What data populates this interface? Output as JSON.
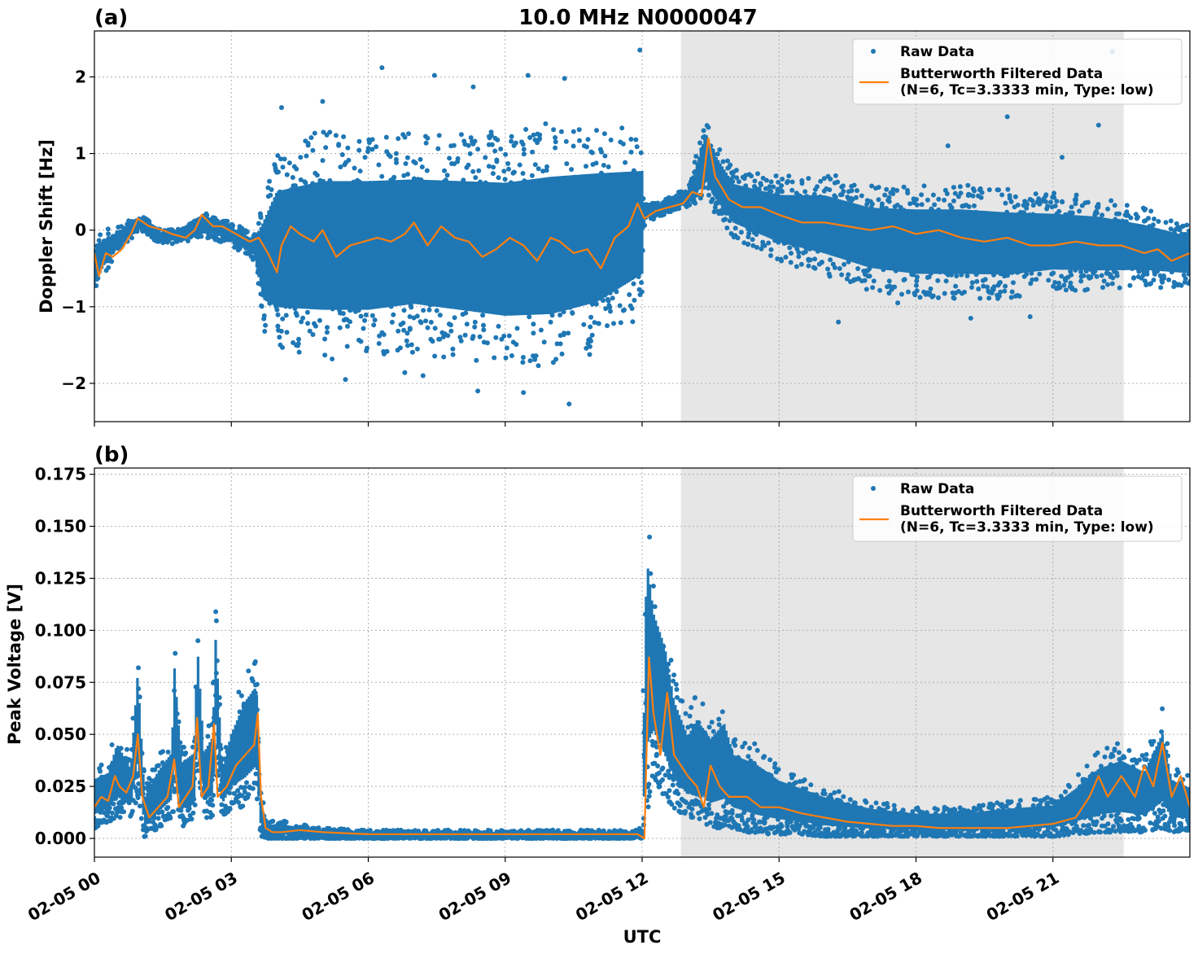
{
  "figure": {
    "title": "10.0 MHz N0000047",
    "xlabel": "UTC"
  },
  "colors": {
    "raw": "#1f77b4",
    "filtered": "#ff7f0e",
    "shade": "#e6e6e6",
    "grid": "#b0b0b0"
  },
  "chart_data": [
    {
      "type": "scatter",
      "panel_label": "(a)",
      "ylabel": "Doppler Shift [Hz]",
      "x_unit": "hours UTC since 02-05 00:00",
      "xlim": [
        0,
        24
      ],
      "ylim": [
        -2.5,
        2.6
      ],
      "yticks": [
        -2,
        -1,
        0,
        1,
        2
      ],
      "ytick_labels": [
        "−2",
        "−1",
        "0",
        "1",
        "2"
      ],
      "xticks": [
        0,
        3,
        6,
        9,
        12,
        15,
        18,
        21
      ],
      "xtick_labels": [
        "02-05 00",
        "02-05 03",
        "02-05 06",
        "02-05 09",
        "02-05 12",
        "02-05 15",
        "02-05 18",
        "02-05 21"
      ],
      "grid": true,
      "shaded_x": [
        12.85,
        22.55
      ],
      "legend": {
        "placement": "top-right",
        "entries": [
          {
            "label": "Raw Data",
            "marker": "dot"
          },
          {
            "label": "Butterworth Filtered Data",
            "sublabel": "(N=6, Tc=3.3333 min, Type: low)",
            "marker": "line"
          }
        ]
      },
      "series": [
        {
          "name": "Raw Data",
          "kind": "scatter-band",
          "x": [
            0,
            0.2,
            0.5,
            1,
            1.5,
            2,
            2.5,
            3,
            3.5,
            3.7,
            4,
            5,
            6,
            7,
            8,
            9,
            10,
            11,
            12,
            12.05,
            12.3,
            13,
            13.4,
            13.6,
            14,
            15,
            16,
            17,
            18,
            19,
            20,
            21,
            22,
            23,
            24
          ],
          "ymin": [
            -0.9,
            -0.6,
            -0.3,
            0.0,
            -0.2,
            -0.15,
            -0.1,
            -0.2,
            -0.4,
            -1.3,
            -1.6,
            -1.7,
            -1.7,
            -1.6,
            -1.7,
            -1.8,
            -1.8,
            -1.6,
            -1.1,
            0.1,
            0.15,
            0.3,
            0.4,
            0.2,
            -0.1,
            -0.4,
            -0.6,
            -0.8,
            -0.9,
            -0.9,
            -0.9,
            -0.8,
            -0.8,
            -0.75,
            -0.75
          ],
          "ymax": [
            -0.1,
            0.0,
            0.05,
            0.2,
            0.0,
            0.05,
            0.25,
            0.1,
            -0.05,
            0.5,
            1.1,
            1.3,
            1.3,
            1.3,
            1.3,
            1.3,
            1.4,
            1.4,
            1.3,
            0.35,
            0.35,
            0.55,
            1.5,
            1.2,
            0.8,
            0.7,
            0.75,
            0.6,
            0.6,
            0.6,
            0.55,
            0.5,
            0.45,
            0.3,
            0.1
          ],
          "outliers": [
            [
              4.1,
              1.6
            ],
            [
              5.0,
              1.68
            ],
            [
              6.3,
              2.12
            ],
            [
              7.45,
              2.02
            ],
            [
              8.3,
              1.87
            ],
            [
              9.5,
              2.02
            ],
            [
              10.3,
              1.98
            ],
            [
              11.95,
              2.35
            ],
            [
              6.8,
              -1.86
            ],
            [
              8.4,
              -2.1
            ],
            [
              9.4,
              -2.12
            ],
            [
              10.4,
              -2.27
            ],
            [
              5.5,
              -1.95
            ],
            [
              7.2,
              -1.9
            ],
            [
              16.3,
              -1.2
            ],
            [
              17.6,
              -0.95
            ],
            [
              19.2,
              -1.15
            ],
            [
              20.5,
              -1.13
            ],
            [
              18.7,
              1.1
            ],
            [
              20.0,
              1.48
            ],
            [
              22.0,
              1.37
            ],
            [
              22.3,
              2.33
            ],
            [
              21.2,
              0.95
            ]
          ]
        },
        {
          "name": "Butterworth Filtered Data",
          "kind": "line",
          "x": [
            0,
            0.1,
            0.25,
            0.4,
            0.6,
            0.8,
            0.95,
            1.2,
            1.5,
            1.7,
            2.0,
            2.2,
            2.35,
            2.6,
            2.8,
            3.1,
            3.4,
            3.6,
            3.8,
            4.0,
            4.1,
            4.3,
            4.5,
            4.8,
            5.0,
            5.3,
            5.6,
            5.9,
            6.2,
            6.5,
            6.8,
            7.0,
            7.3,
            7.6,
            7.9,
            8.2,
            8.5,
            8.8,
            9.1,
            9.4,
            9.7,
            10.0,
            10.2,
            10.5,
            10.8,
            11.1,
            11.4,
            11.7,
            11.9,
            12.05,
            12.3,
            12.6,
            12.9,
            13.1,
            13.3,
            13.45,
            13.6,
            13.9,
            14.2,
            14.6,
            15.0,
            15.5,
            16.0,
            16.5,
            17.0,
            17.5,
            18.0,
            18.5,
            19.0,
            19.5,
            20.0,
            20.5,
            21.0,
            21.5,
            22.0,
            22.5,
            23.0,
            23.3,
            23.6,
            24.0
          ],
          "y": [
            -0.3,
            -0.6,
            -0.3,
            -0.35,
            -0.25,
            -0.05,
            0.15,
            0.05,
            0.0,
            -0.05,
            -0.1,
            0.0,
            0.2,
            0.05,
            0.05,
            -0.05,
            -0.15,
            -0.1,
            -0.3,
            -0.55,
            -0.2,
            0.05,
            -0.05,
            -0.15,
            0.0,
            -0.35,
            -0.2,
            -0.15,
            -0.1,
            -0.15,
            -0.05,
            0.1,
            -0.2,
            0.05,
            -0.1,
            -0.15,
            -0.35,
            -0.25,
            -0.1,
            -0.2,
            -0.4,
            -0.1,
            -0.15,
            -0.3,
            -0.25,
            -0.5,
            -0.1,
            0.05,
            0.35,
            0.15,
            0.25,
            0.3,
            0.35,
            0.5,
            0.45,
            1.2,
            0.7,
            0.4,
            0.3,
            0.3,
            0.2,
            0.1,
            0.1,
            0.05,
            0.0,
            0.05,
            -0.05,
            0.0,
            -0.1,
            -0.15,
            -0.1,
            -0.2,
            -0.2,
            -0.15,
            -0.2,
            -0.2,
            -0.3,
            -0.25,
            -0.4,
            -0.3
          ]
        }
      ]
    },
    {
      "type": "scatter",
      "panel_label": "(b)",
      "ylabel": "Peak Voltage [V]",
      "x_unit": "hours UTC since 02-05 00:00",
      "xlim": [
        0,
        24
      ],
      "ylim": [
        -0.009,
        0.178
      ],
      "yticks": [
        0.0,
        0.025,
        0.05,
        0.075,
        0.1,
        0.125,
        0.15,
        0.175
      ],
      "ytick_labels": [
        "0.000",
        "0.025",
        "0.050",
        "0.075",
        "0.100",
        "0.125",
        "0.150",
        "0.175"
      ],
      "xticks": [
        0,
        3,
        6,
        9,
        12,
        15,
        18,
        21
      ],
      "xtick_labels": [
        "02-05 00",
        "02-05 03",
        "02-05 06",
        "02-05 09",
        "02-05 12",
        "02-05 15",
        "02-05 18",
        "02-05 21"
      ],
      "grid": true,
      "shaded_x": [
        12.85,
        22.55
      ],
      "legend": {
        "placement": "top-right",
        "entries": [
          {
            "label": "Raw Data",
            "marker": "dot"
          },
          {
            "label": "Butterworth Filtered Data",
            "sublabel": "(N=6, Tc=3.3333 min, Type: low)",
            "marker": "line"
          }
        ]
      },
      "series": [
        {
          "name": "Raw Data",
          "kind": "scatter-band",
          "x": [
            0,
            0.3,
            0.5,
            0.8,
            0.95,
            1.1,
            1.4,
            1.7,
            1.75,
            1.9,
            2.2,
            2.25,
            2.4,
            2.6,
            2.65,
            2.8,
            3.0,
            3.3,
            3.55,
            3.65,
            3.8,
            4.0,
            5.0,
            6.0,
            8.0,
            10.0,
            11.9,
            12.0,
            12.1,
            12.25,
            12.5,
            12.7,
            13.0,
            13.2,
            13.5,
            13.8,
            14.0,
            14.5,
            15.0,
            15.5,
            16.0,
            17.0,
            18.0,
            19.0,
            20.0,
            21.0,
            21.5,
            22.0,
            22.5,
            23.0,
            23.4,
            23.6,
            24.0
          ],
          "ymin": [
            0.005,
            0.008,
            0.01,
            0.01,
            0.02,
            0.0,
            0.005,
            0.01,
            0.02,
            0.005,
            0.01,
            0.035,
            0.01,
            0.01,
            0.04,
            0.01,
            0.015,
            0.015,
            0.02,
            0.001,
            0.0,
            0.0,
            0.0,
            0.0,
            0.0,
            0.0,
            0.0,
            0.0,
            0.01,
            0.03,
            0.02,
            0.015,
            0.01,
            0.01,
            0.005,
            0.005,
            0.005,
            0.002,
            0.002,
            0.002,
            0.001,
            0.001,
            0.001,
            0.001,
            0.001,
            0.001,
            0.002,
            0.003,
            0.003,
            0.003,
            0.005,
            0.003,
            0.004
          ],
          "ymax": [
            0.035,
            0.038,
            0.055,
            0.04,
            0.096,
            0.025,
            0.04,
            0.05,
            0.102,
            0.045,
            0.05,
            0.112,
            0.05,
            0.06,
            0.115,
            0.04,
            0.06,
            0.08,
            0.088,
            0.02,
            0.008,
            0.009,
            0.005,
            0.004,
            0.004,
            0.004,
            0.004,
            0.006,
            0.17,
            0.13,
            0.112,
            0.08,
            0.06,
            0.07,
            0.06,
            0.069,
            0.05,
            0.045,
            0.035,
            0.03,
            0.025,
            0.018,
            0.015,
            0.015,
            0.018,
            0.02,
            0.03,
            0.042,
            0.047,
            0.04,
            0.063,
            0.035,
            0.03
          ]
        },
        {
          "name": "Butterworth Filtered Data",
          "kind": "line",
          "x": [
            0,
            0.15,
            0.3,
            0.45,
            0.55,
            0.7,
            0.85,
            0.95,
            1.05,
            1.2,
            1.4,
            1.6,
            1.75,
            1.85,
            2.0,
            2.15,
            2.25,
            2.35,
            2.5,
            2.62,
            2.7,
            2.9,
            3.1,
            3.3,
            3.5,
            3.58,
            3.65,
            3.75,
            3.9,
            4.1,
            4.5,
            5.0,
            6.0,
            7.0,
            8.0,
            9.0,
            10.0,
            11.0,
            11.9,
            12.05,
            12.15,
            12.25,
            12.4,
            12.55,
            12.7,
            12.85,
            13.0,
            13.2,
            13.35,
            13.5,
            13.7,
            13.9,
            14.1,
            14.3,
            14.6,
            15.0,
            15.5,
            16.0,
            16.5,
            17.0,
            17.5,
            18.0,
            18.5,
            19.0,
            19.5,
            20.0,
            20.5,
            21.0,
            21.5,
            21.8,
            22.0,
            22.2,
            22.5,
            22.8,
            23.0,
            23.2,
            23.4,
            23.6,
            23.8,
            24.0
          ],
          "y": [
            0.015,
            0.02,
            0.018,
            0.03,
            0.025,
            0.022,
            0.03,
            0.05,
            0.02,
            0.01,
            0.015,
            0.02,
            0.038,
            0.015,
            0.02,
            0.025,
            0.058,
            0.02,
            0.025,
            0.055,
            0.02,
            0.025,
            0.035,
            0.04,
            0.045,
            0.06,
            0.02,
            0.005,
            0.003,
            0.003,
            0.004,
            0.003,
            0.002,
            0.002,
            0.002,
            0.002,
            0.002,
            0.002,
            0.002,
            0.0,
            0.087,
            0.06,
            0.04,
            0.07,
            0.04,
            0.035,
            0.03,
            0.025,
            0.015,
            0.035,
            0.025,
            0.02,
            0.02,
            0.02,
            0.015,
            0.015,
            0.012,
            0.01,
            0.008,
            0.007,
            0.006,
            0.006,
            0.005,
            0.005,
            0.005,
            0.005,
            0.006,
            0.007,
            0.01,
            0.02,
            0.03,
            0.02,
            0.03,
            0.02,
            0.035,
            0.025,
            0.046,
            0.02,
            0.03,
            0.015
          ]
        }
      ]
    }
  ]
}
